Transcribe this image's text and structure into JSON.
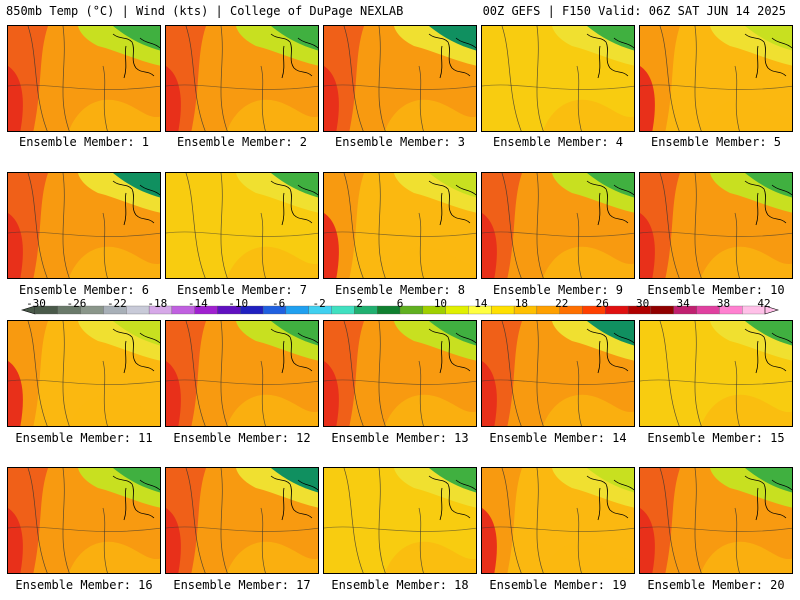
{
  "header": {
    "left": "850mb Temp (°C) | Wind (kts) | College of DuPage NEXLAB",
    "right": "00Z GEFS | F150 Valid: 06Z SAT JUN 14 2025"
  },
  "members": [
    {
      "label": "Ensemble Member: 1"
    },
    {
      "label": "Ensemble Member: 2"
    },
    {
      "label": "Ensemble Member: 3"
    },
    {
      "label": "Ensemble Member: 4"
    },
    {
      "label": "Ensemble Member: 5"
    },
    {
      "label": "Ensemble Member: 6"
    },
    {
      "label": "Ensemble Member: 7"
    },
    {
      "label": "Ensemble Member: 8"
    },
    {
      "label": "Ensemble Member: 9"
    },
    {
      "label": "Ensemble Member: 10"
    },
    {
      "label": "Ensemble Member: 11"
    },
    {
      "label": "Ensemble Member: 12"
    },
    {
      "label": "Ensemble Member: 13"
    },
    {
      "label": "Ensemble Member: 14"
    },
    {
      "label": "Ensemble Member: 15"
    },
    {
      "label": "Ensemble Member: 16"
    },
    {
      "label": "Ensemble Member: 17"
    },
    {
      "label": "Ensemble Member: 18"
    },
    {
      "label": "Ensemble Member: 19"
    },
    {
      "label": "Ensemble Member: 20"
    }
  ],
  "colorbar": {
    "labels": [
      "-30",
      "-26",
      "-22",
      "-18",
      "-14",
      "-10",
      "-6",
      "-2",
      "2",
      "6",
      "10",
      "14",
      "18",
      "22",
      "26",
      "30",
      "34",
      "38",
      "42"
    ],
    "colors": [
      "#4a5a4a",
      "#6a7a6a",
      "#8a968a",
      "#a8b0b8",
      "#c8cad8",
      "#d6a8e8",
      "#c060e0",
      "#a020d0",
      "#6010c0",
      "#2020c0",
      "#2060e0",
      "#20a0f0",
      "#40d0f0",
      "#40e0c0",
      "#20b070",
      "#108030",
      "#60b020",
      "#a0d000",
      "#e0f000",
      "#ffff40",
      "#ffe000",
      "#ffc000",
      "#ffa000",
      "#ff7000",
      "#ff4000",
      "#e01010",
      "#b00000",
      "#900000",
      "#c02070",
      "#e040a0",
      "#ff80d0",
      "#ffc0e8"
    ]
  },
  "palette": {
    "red": "#e8301a",
    "orange_red": "#f06018",
    "orange": "#f89a10",
    "light_orange": "#fbb810",
    "yellow_orange": "#f8cc10",
    "yellow": "#f0e030",
    "yellow_green": "#c8e020",
    "green": "#40b040",
    "dark_green": "#109060"
  }
}
